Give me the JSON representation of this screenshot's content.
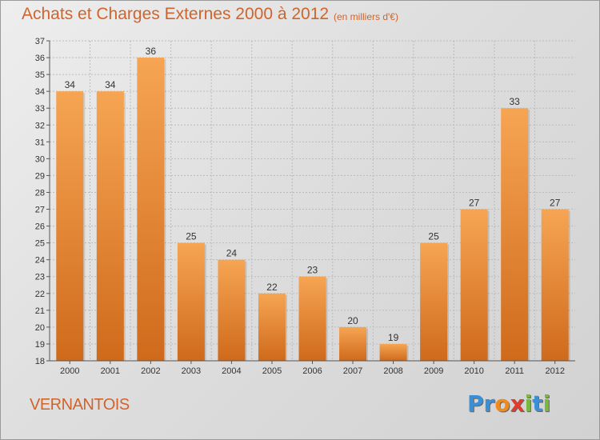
{
  "chart_data": {
    "type": "bar",
    "title": "Achats et Charges Externes 2000 à 2012",
    "subtitle": "(en milliers d'€)",
    "categories": [
      "2000",
      "2001",
      "2002",
      "2003",
      "2004",
      "2005",
      "2006",
      "2007",
      "2008",
      "2009",
      "2010",
      "2011",
      "2012"
    ],
    "values": [
      34,
      34,
      36,
      25,
      24,
      22,
      23,
      20,
      19,
      25,
      27,
      33,
      27
    ],
    "ylim": [
      18,
      37
    ],
    "yticks": [
      "18",
      "19",
      "20",
      "21",
      "22",
      "23",
      "24",
      "25",
      "26",
      "27",
      "28",
      "29",
      "30",
      "31",
      "32",
      "33",
      "34",
      "35",
      "36",
      "37"
    ],
    "grid": true,
    "colors": {
      "bar_top": "#f6a553",
      "bar_bottom": "#cf6a1b",
      "accent": "#d0642a",
      "axis": "#555555",
      "grid": "#bbbbbb"
    }
  },
  "location_label": "VERNANTOIS",
  "logo": {
    "letters": [
      "P",
      "r",
      "o",
      "x",
      "i",
      "t",
      "i"
    ],
    "colors": [
      "#3a8fd6",
      "#3a8fd6",
      "#f08a1c",
      "#e23b2c",
      "#79b93a",
      "#3a8fd6",
      "#79b93a"
    ]
  }
}
